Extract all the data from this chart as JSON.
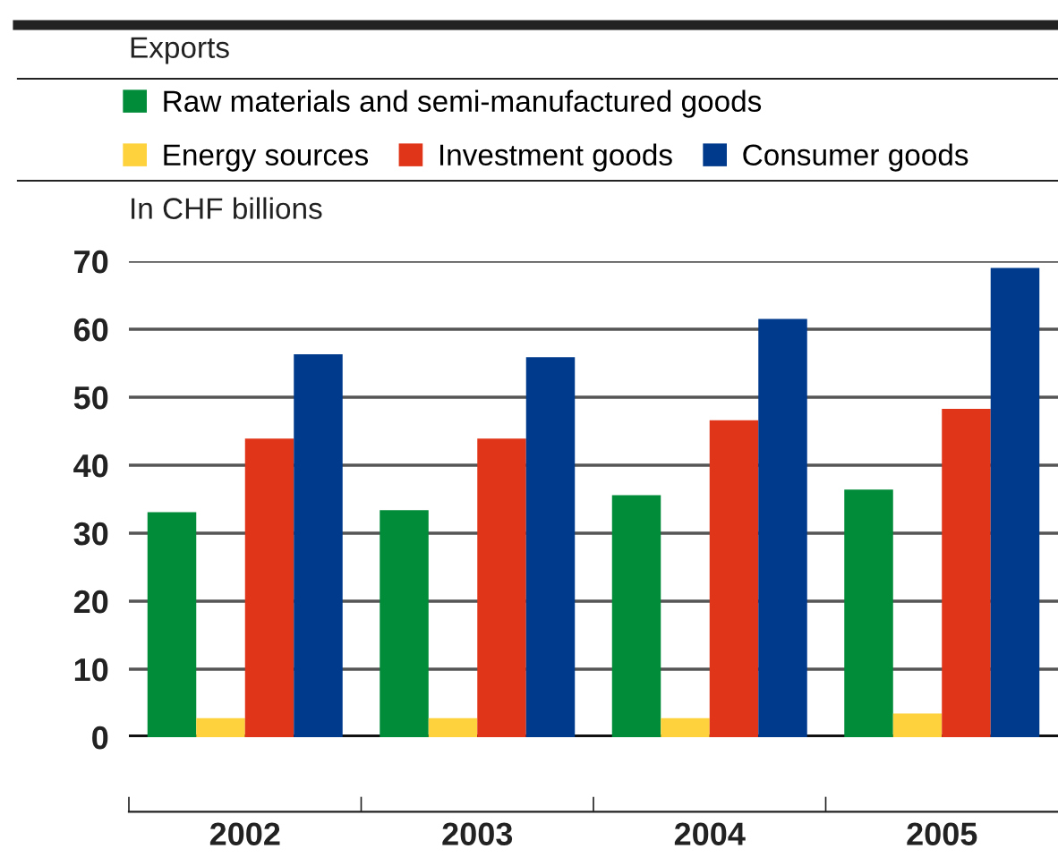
{
  "chart_data": {
    "type": "bar",
    "title": "Exports",
    "ylabel": "In CHF billions",
    "categories": [
      "2002",
      "2003",
      "2004",
      "2005"
    ],
    "series": [
      {
        "name": "Raw materials and semi-manufactured goods",
        "color": "#008c39",
        "values": [
          33.1,
          33.4,
          35.6,
          36.4
        ]
      },
      {
        "name": "Energy sources",
        "color": "#fdd23c",
        "values": [
          2.8,
          2.8,
          2.8,
          3.5
        ]
      },
      {
        "name": "Investment goods",
        "color": "#e03518",
        "values": [
          43.9,
          43.9,
          46.6,
          48.3
        ]
      },
      {
        "name": "Consumer goods",
        "color": "#003a8c",
        "values": [
          56.3,
          55.9,
          61.5,
          69.0
        ]
      }
    ],
    "ylim": [
      0,
      70
    ],
    "yticks": [
      0,
      10,
      20,
      30,
      40,
      50,
      60,
      70
    ],
    "grid": "y",
    "legend": "top"
  }
}
